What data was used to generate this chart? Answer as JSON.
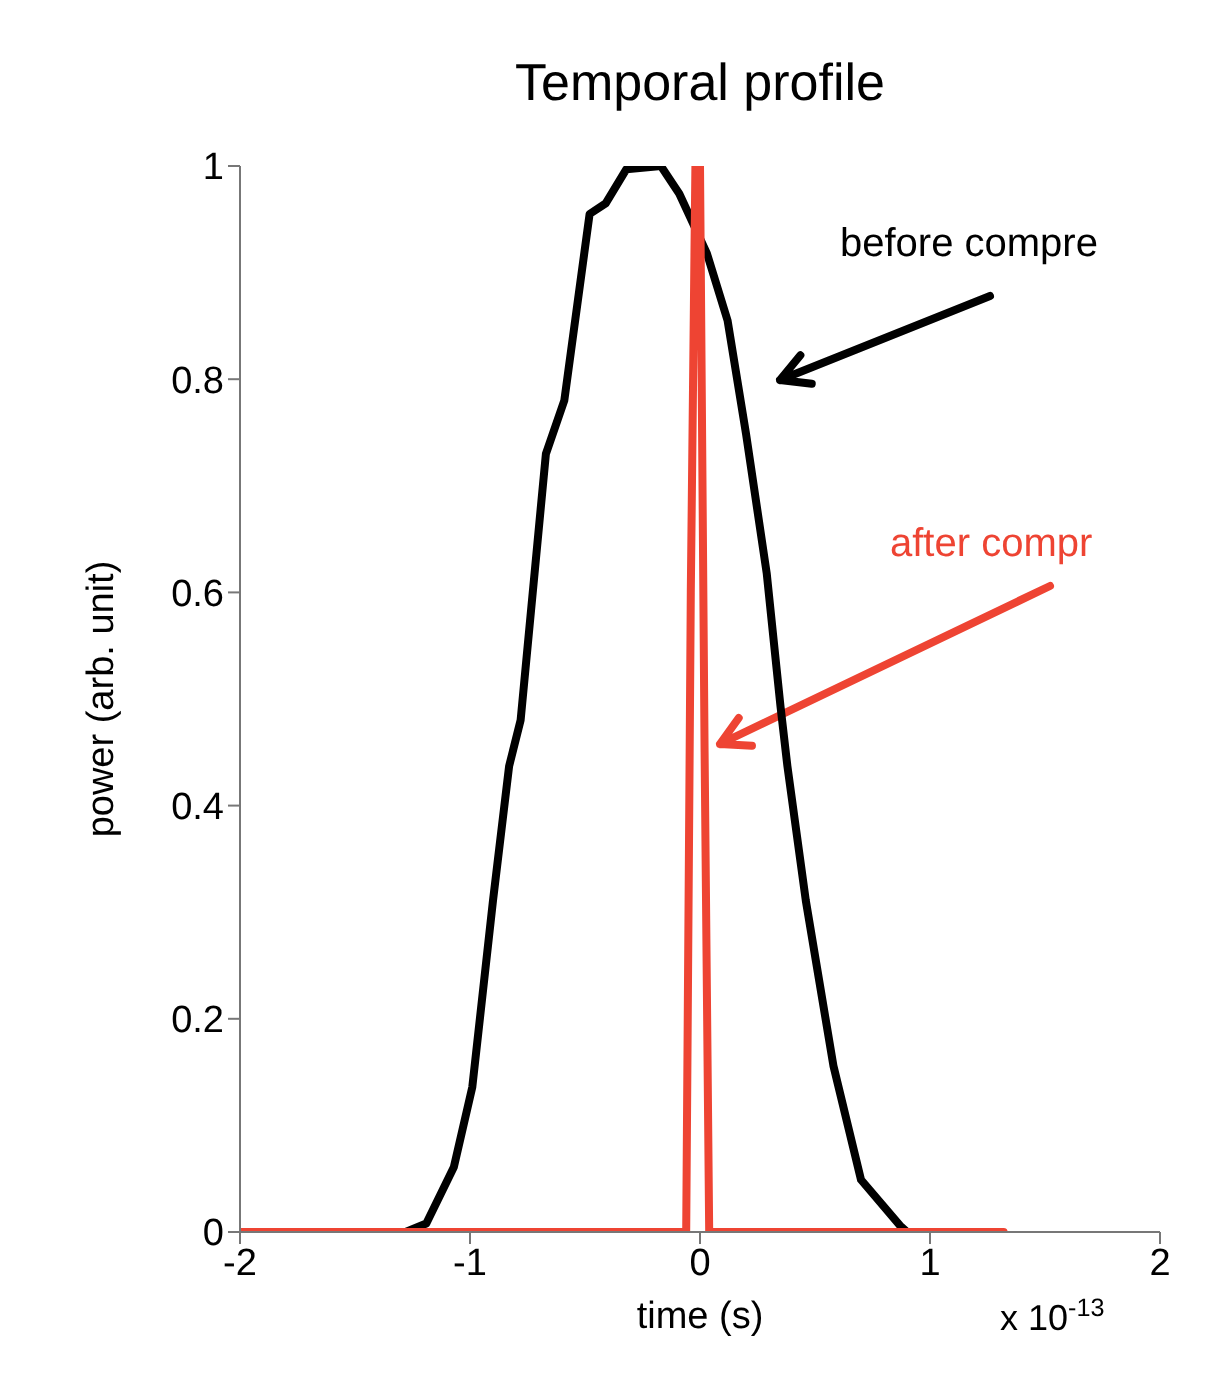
{
  "chart_data": {
    "type": "line",
    "title": "Temporal profile",
    "xlabel": "time (s)",
    "ylabel": "power (arb. unit)",
    "xlim": [
      -2,
      2
    ],
    "xticks": [
      -2,
      -1,
      0,
      1,
      2
    ],
    "ylim": [
      0,
      1
    ],
    "yticks": [
      0,
      0.2,
      0.4,
      0.6,
      0.8,
      1
    ],
    "series": [
      {
        "color": "#000000",
        "x": [
          -1.28,
          -1.19,
          -1.07,
          -0.99,
          -0.9,
          -0.83,
          -0.78,
          -0.67,
          -0.59,
          -0.48,
          -0.41,
          -0.32,
          -0.17,
          -0.09,
          0.03,
          0.12,
          0.2,
          0.29,
          0.35,
          0.38,
          0.46,
          0.58,
          0.7,
          0.87,
          0.9
        ],
        "values": [
          0,
          0.008,
          0.061,
          0.136,
          0.311,
          0.437,
          0.48,
          0.73,
          0.78,
          0.955,
          0.965,
          0.997,
          1,
          0.974,
          0.918,
          0.855,
          0.749,
          0.618,
          0.493,
          0.437,
          0.311,
          0.156,
          0.049,
          0.006,
          0
        ]
      },
      {
        "color": "#ee4433",
        "x": [
          -2,
          -0.06,
          -0.04,
          -0.02,
          0,
          0.02,
          0.04,
          1.32
        ],
        "values": [
          0,
          0,
          0.6,
          1,
          1,
          0.45,
          0,
          0
        ]
      }
    ],
    "annotations": [
      "before compre",
      "after compr",
      "x 10$^{-13}$"
    ]
  }
}
